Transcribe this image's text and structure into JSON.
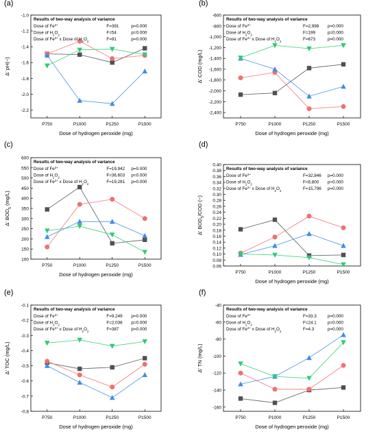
{
  "xlabel": "Dose of hydrogen peroxide (mg)",
  "categories": [
    "P750",
    "P1000",
    "P1250",
    "P1500"
  ],
  "legend_title": "Results of two-way analysis of variance",
  "colors": {
    "black": "#505050",
    "red": "#f07070",
    "blue": "#3d8ee8",
    "green": "#2ecc71"
  },
  "chart_data": [
    {
      "type": "line",
      "panel_label": "(a)",
      "ylabel": "Δ' pH(−)",
      "ylim": [
        -2.3,
        -1.0
      ],
      "yticks": [
        "-1.0",
        "-1.2",
        "-1.4",
        "-1.6",
        "-1.8",
        "-2.0",
        "-2.2"
      ],
      "categories": [
        "P750",
        "P1000",
        "P1250",
        "P1500"
      ],
      "anova": [
        {
          "label": "Dose of Fe2+",
          "f": "F=391",
          "p": "p=0.000"
        },
        {
          "label": "Dose of H2O2",
          "f": "F=54",
          "p": "p=0.000"
        },
        {
          "label": "Dose of Fe2+ x Dose of H2O2",
          "f": "F=91",
          "p": "p=0.000"
        }
      ],
      "series": [
        {
          "marker": "square",
          "color": "black",
          "values": [
            -1.49,
            -1.5,
            -1.6,
            -1.42
          ]
        },
        {
          "marker": "circle",
          "color": "red",
          "values": [
            -1.49,
            -1.33,
            -1.55,
            -1.51
          ]
        },
        {
          "marker": "triangle-up",
          "color": "blue",
          "values": [
            -1.51,
            -2.08,
            -2.12,
            -1.71
          ]
        },
        {
          "marker": "triangle-down",
          "color": "green",
          "values": [
            -1.64,
            -1.44,
            -1.43,
            -1.5
          ]
        }
      ]
    },
    {
      "type": "line",
      "panel_label": "(b)",
      "ylabel": "Δ' COD (mg/L)",
      "ylim": [
        -2500,
        -600
      ],
      "yticks": [
        "-600",
        "-800",
        "-1,000",
        "-1,200",
        "-1,400",
        "-1,600",
        "-1,800",
        "-2,000",
        "-2,200",
        "-2,400"
      ],
      "categories": [
        "P750",
        "P1000",
        "P1250",
        "P1500"
      ],
      "anova": [
        {
          "label": "Dose of Fe2+",
          "f": "F=2,998",
          "p": "p=0.000"
        },
        {
          "label": "Dose of H2O2",
          "f": "F=199",
          "p": "p=0.000"
        },
        {
          "label": "Dose of Fe2+ x Dose of H2O2",
          "f": "F=673",
          "p": "p=0.000"
        }
      ],
      "series": [
        {
          "marker": "square",
          "color": "black",
          "values": [
            -2070,
            -2040,
            -1580,
            -1510
          ]
        },
        {
          "marker": "circle",
          "color": "red",
          "values": [
            -1760,
            -1660,
            -2330,
            -2290
          ]
        },
        {
          "marker": "triangle-up",
          "color": "blue",
          "values": [
            -1400,
            -1600,
            -2100,
            -1920
          ]
        },
        {
          "marker": "triangle-down",
          "color": "green",
          "values": [
            -1390,
            -1160,
            -1220,
            -1160
          ]
        }
      ]
    },
    {
      "type": "line",
      "panel_label": "(c)",
      "ylabel": "Δ' BOD5 (mg/L)",
      "ylim": [
        100,
        600
      ],
      "yticks": [
        "100",
        "150",
        "200",
        "250",
        "300",
        "350",
        "400",
        "450",
        "500",
        "550",
        "600"
      ],
      "categories": [
        "P750",
        "P1000",
        "P1250",
        "P1500"
      ],
      "anova": [
        {
          "label": "Dose of Fe2+",
          "f": "F=19,942",
          "p": "p=0.000"
        },
        {
          "label": "Dose of H2O2",
          "f": "F=36,603",
          "p": "p=0.000"
        },
        {
          "label": "Dose of Fe2+ x Dose of H2O2",
          "f": "F=19,281",
          "p": "p=0.000"
        }
      ],
      "series": [
        {
          "marker": "square",
          "color": "black",
          "values": [
            345,
            455,
            178,
            195
          ]
        },
        {
          "marker": "circle",
          "color": "red",
          "values": [
            160,
            370,
            395,
            300
          ]
        },
        {
          "marker": "triangle-up",
          "color": "blue",
          "values": [
            210,
            285,
            285,
            215
          ]
        },
        {
          "marker": "triangle-down",
          "color": "green",
          "values": [
            240,
            262,
            220,
            135
          ]
        }
      ]
    },
    {
      "type": "line",
      "panel_label": "(d)",
      "ylabel": "Δ' BOD5/COD (−)",
      "ylim": [
        0.06,
        0.4
      ],
      "yticks": [
        "0.06",
        "0.08",
        "0.10",
        "0.12",
        "0.14",
        "0.16",
        "0.18",
        "0.20",
        "0.22",
        "0.24",
        "0.26",
        "0.28",
        "0.30",
        "0.32",
        "0.34",
        "0.36",
        "0.38",
        "0.40"
      ],
      "categories": [
        "P750",
        "P1000",
        "P1250",
        "P1500"
      ],
      "anova": [
        {
          "label": "Dose of Fe2+",
          "f": "F=32,846",
          "p": "p=0.000"
        },
        {
          "label": "Dose of H2O2",
          "f": "F=6,800",
          "p": "p=0.000"
        },
        {
          "label": "Dose of Fe2+ x Dose of H2O2",
          "f": "F=15,796",
          "p": "p=0.000"
        }
      ],
      "series": [
        {
          "marker": "square",
          "color": "black",
          "values": [
            0.183,
            0.215,
            0.095,
            0.097
          ]
        },
        {
          "marker": "circle",
          "color": "red",
          "values": [
            0.103,
            0.157,
            0.227,
            0.188
          ]
        },
        {
          "marker": "triangle-up",
          "color": "blue",
          "values": [
            0.098,
            0.128,
            0.168,
            0.128
          ]
        },
        {
          "marker": "triangle-down",
          "color": "green",
          "values": [
            0.1,
            0.097,
            0.088,
            0.065
          ]
        }
      ]
    },
    {
      "type": "line",
      "panel_label": "(e)",
      "ylabel": "Δ' TOC (mg/L)",
      "ylim": [
        -0.8,
        -0.1
      ],
      "yticks": [
        "-0.1",
        "-0.2",
        "-0.3",
        "-0.4",
        "-0.5",
        "-0.6",
        "-0.7",
        "-0.8"
      ],
      "categories": [
        "P750",
        "P1000",
        "P1250",
        "P1500"
      ],
      "anova": [
        {
          "label": "Dose of Fe2+",
          "f": "F=9,249",
          "p": "p=0.000"
        },
        {
          "label": "Dose of H2O2",
          "f": "F=2,038",
          "p": "p=0.000"
        },
        {
          "label": "Dose of Fe2+ x Dose of H2O2",
          "f": "F=387",
          "p": "p=0.000"
        }
      ],
      "series": [
        {
          "marker": "square",
          "color": "black",
          "values": [
            -0.48,
            -0.52,
            -0.51,
            -0.45
          ]
        },
        {
          "marker": "circle",
          "color": "red",
          "values": [
            -0.47,
            -0.56,
            -0.64,
            -0.49
          ]
        },
        {
          "marker": "triangle-up",
          "color": "blue",
          "values": [
            -0.5,
            -0.61,
            -0.71,
            -0.56
          ]
        },
        {
          "marker": "triangle-down",
          "color": "green",
          "values": [
            -0.35,
            -0.33,
            -0.37,
            -0.34
          ]
        }
      ]
    },
    {
      "type": "line",
      "panel_label": "(f)",
      "ylabel": "Δ' TN (mg/L)",
      "ylim": [
        -165,
        -40
      ],
      "yticks": [
        "-40",
        "-60",
        "-80",
        "-100",
        "-120",
        "-140",
        "-160"
      ],
      "categories": [
        "P750",
        "P1000",
        "P1250",
        "P1500"
      ],
      "anova": [
        {
          "label": "Dose of Fe2+",
          "f": "F=33.3",
          "p": "p=0.000"
        },
        {
          "label": "Dose of H2O2",
          "f": "F=24.1",
          "p": "p=0.000"
        },
        {
          "label": "Dose of Fe2+ x Dose of H2O2",
          "f": "F=4.3",
          "p": "p=0.000"
        }
      ],
      "series": [
        {
          "marker": "square",
          "color": "black",
          "values": [
            -150,
            -155,
            -140,
            -137
          ]
        },
        {
          "marker": "circle",
          "color": "red",
          "values": [
            -120,
            -139,
            -139,
            -111
          ]
        },
        {
          "marker": "triangle-up",
          "color": "blue",
          "values": [
            -133,
            -124,
            -102,
            -75
          ]
        },
        {
          "marker": "triangle-down",
          "color": "green",
          "values": [
            -109,
            -124,
            -126,
            -84
          ]
        }
      ]
    }
  ]
}
